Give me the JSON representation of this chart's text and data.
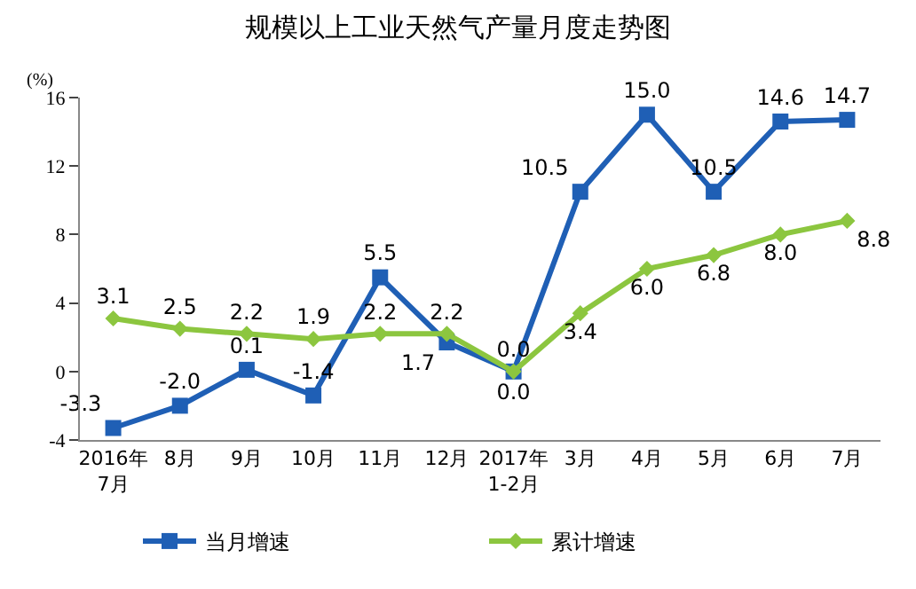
{
  "chart_data": {
    "type": "line",
    "title": "规模以上工业天然气产量月度走势图",
    "ylabel": "(%)",
    "categories": [
      "2016年\n7月",
      "8月",
      "9月",
      "10月",
      "11月",
      "12月",
      "2017年\n1-2月",
      "3月",
      "4月",
      "5月",
      "6月",
      "7月"
    ],
    "series": [
      {
        "name": "当月增速",
        "color": "#1f5fb5",
        "marker": "square",
        "values": [
          -3.3,
          -2.0,
          0.1,
          -1.4,
          5.5,
          1.7,
          0.0,
          10.5,
          15.0,
          10.5,
          14.6,
          14.7
        ],
        "value_labels": [
          "-3.3",
          "-2.0",
          "0.1",
          "-1.4",
          "5.5",
          "1.7",
          "0.0",
          "10.5",
          "15.0",
          "10.5",
          "14.6",
          "14.7"
        ]
      },
      {
        "name": "累计增速",
        "color": "#8cc63f",
        "marker": "diamond",
        "values": [
          3.1,
          2.5,
          2.2,
          1.9,
          2.2,
          2.2,
          0.0,
          3.4,
          6.0,
          6.8,
          8.0,
          8.8
        ],
        "value_labels": [
          "3.1",
          "2.5",
          "2.2",
          "1.9",
          "2.2",
          "2.2",
          "0.0",
          "3.4",
          "6.0",
          "6.8",
          "8.0",
          "8.8"
        ]
      }
    ],
    "ylim": [
      -4,
      16
    ],
    "yticks": [
      -4,
      0,
      4,
      8,
      12,
      16
    ],
    "legend": "bottom",
    "line_style": "solid"
  }
}
